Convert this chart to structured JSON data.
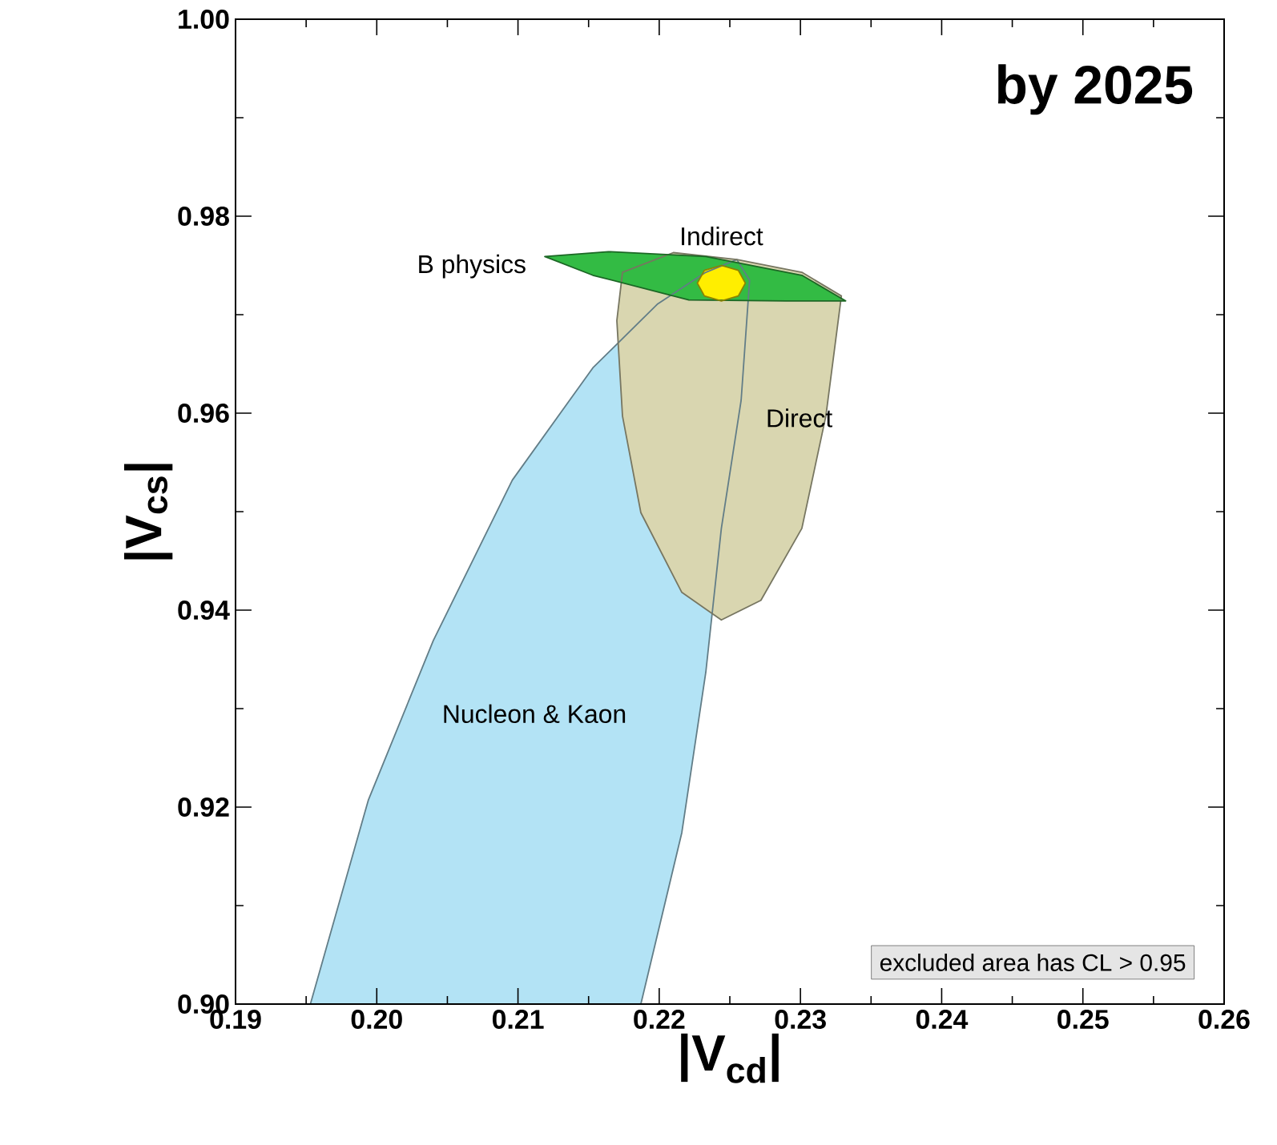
{
  "chart_data": {
    "type": "area",
    "xlabel": "|V$_{cd}$|",
    "ylabel": "|V$_{cs}$|",
    "xlim": [
      0.19,
      0.26
    ],
    "ylim": [
      0.9,
      1.0
    ],
    "xticks": [
      0.19,
      {
        "value": 0.2,
        "label": "0.20"
      },
      0.21,
      0.22,
      0.23,
      0.24,
      0.25,
      0.26
    ],
    "yticks": [
      {
        "value": 0.9,
        "label": "0.90"
      },
      0.92,
      0.94,
      0.96,
      0.98,
      {
        "value": 1.0,
        "label": "1.00"
      }
    ],
    "series": [
      {
        "name": "Nucleon & Kaon",
        "color": "#b3e3f5",
        "x": [
          0.1953,
          0.1994,
          0.204,
          0.2096,
          0.2153,
          0.2199,
          0.2233,
          0.2255,
          0.2264,
          0.2258,
          0.2244,
          0.2233,
          0.2216,
          0.2187
        ],
        "values": [
          0.9,
          0.9207,
          0.9369,
          0.9532,
          0.9646,
          0.9711,
          0.9743,
          0.9756,
          0.9735,
          0.9613,
          0.9483,
          0.9337,
          0.9174,
          0.9
        ]
      },
      {
        "name": "Direct",
        "color": "#d9d6b0",
        "x": [
          0.2174,
          0.221,
          0.2255,
          0.2301,
          0.2329,
          0.2318,
          0.2301,
          0.2272,
          0.2244,
          0.2216,
          0.2187,
          0.2174,
          0.217
        ],
        "values": [
          0.9743,
          0.9763,
          0.9756,
          0.9743,
          0.9719,
          0.9597,
          0.9483,
          0.941,
          0.939,
          0.9418,
          0.9499,
          0.9597,
          0.9694
        ]
      },
      {
        "name": "B physics",
        "color": "#33bb44",
        "x": [
          0.2119,
          0.2164,
          0.2233,
          0.2301,
          0.2332,
          0.229,
          0.2221,
          0.2153
        ],
        "values": [
          0.9759,
          0.9764,
          0.9759,
          0.974,
          0.9714,
          0.9714,
          0.9715,
          0.974
        ]
      },
      {
        "name": "Indirect",
        "color": "#ffee00",
        "x": [
          0.2261,
          0.2256,
          0.2244,
          0.2232,
          0.2227,
          0.2232,
          0.2244,
          0.2256
        ],
        "values": [
          0.9732,
          0.9719,
          0.9714,
          0.9719,
          0.9732,
          0.9745,
          0.975,
          0.9745
        ]
      }
    ],
    "annotations": [
      "by 2025",
      "excluded area has CL > 0.95"
    ]
  }
}
